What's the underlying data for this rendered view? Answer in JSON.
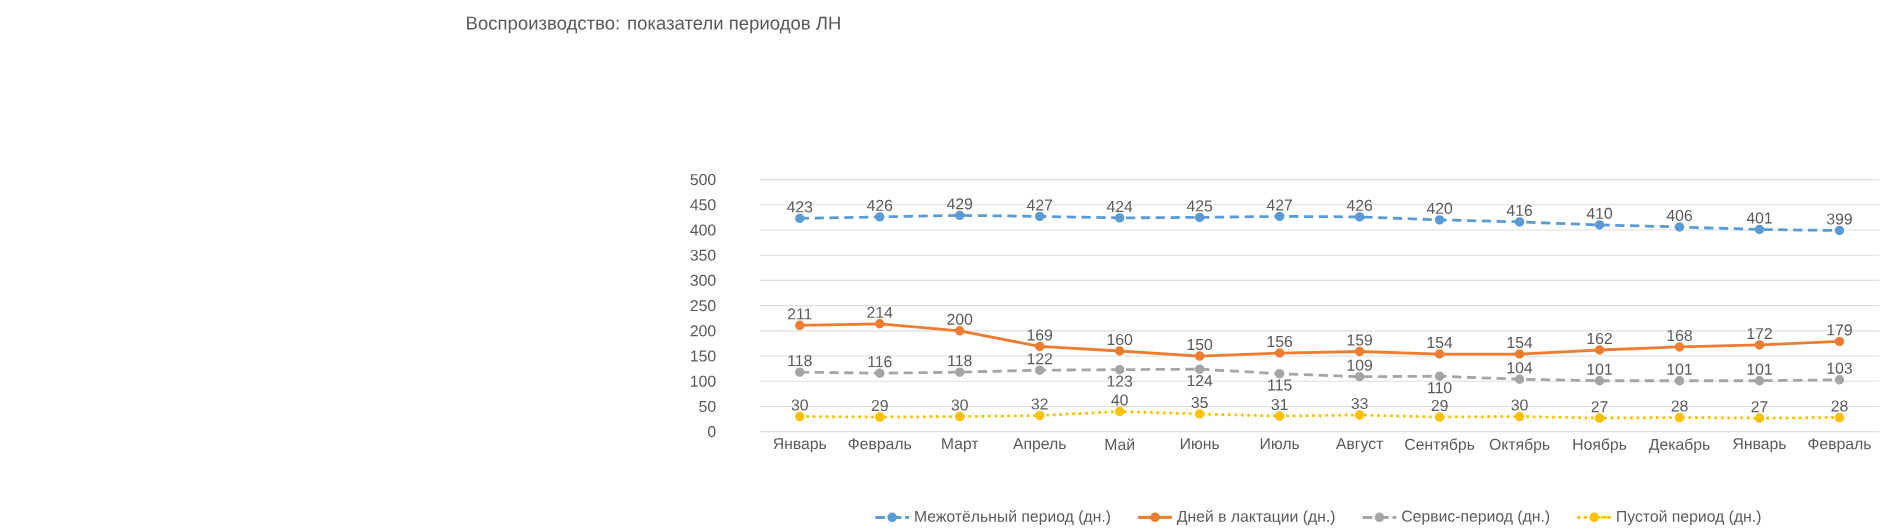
{
  "chart_data": {
    "type": "line",
    "title": "Воспроизводство: показатели периодов ЛН",
    "categories": [
      "Январь",
      "Февраль",
      "Март",
      "Апрель",
      "Май",
      "Июнь",
      "Июль",
      "Август",
      "Сентябрь",
      "Октябрь",
      "Ноябрь",
      "Декабрь",
      "Январь",
      "Февраль"
    ],
    "series": [
      {
        "name": "Межотёльный период (дн.)",
        "color": "#5b9bd5",
        "line_style": "dashed",
        "values": [
          423,
          426,
          429,
          427,
          424,
          425,
          427,
          426,
          420,
          416,
          410,
          406,
          401,
          399
        ]
      },
      {
        "name": "Дней в лактации (дн.)",
        "color": "#ed7d31",
        "line_style": "solid",
        "values": [
          211,
          214,
          200,
          169,
          160,
          150,
          156,
          159,
          154,
          154,
          162,
          168,
          172,
          179
        ]
      },
      {
        "name": "Сервис-период (дн.)",
        "color": "#a5a5a5",
        "line_style": "dashed",
        "values": [
          118,
          116,
          118,
          122,
          123,
          124,
          115,
          109,
          110,
          104,
          101,
          101,
          101,
          103
        ]
      },
      {
        "name": "Пустой период (дн.)",
        "color": "#ffc000",
        "line_style": "dotted",
        "values": [
          30,
          29,
          30,
          32,
          40,
          35,
          31,
          33,
          29,
          30,
          27,
          28,
          27,
          28
        ]
      }
    ],
    "ylim": [
      0,
      500
    ],
    "yticks": [
      0,
      50,
      100,
      150,
      200,
      250,
      300,
      350,
      400,
      450,
      500
    ],
    "grid": "y",
    "legend": "bottom",
    "marker": "circle",
    "data_labels": true
  }
}
